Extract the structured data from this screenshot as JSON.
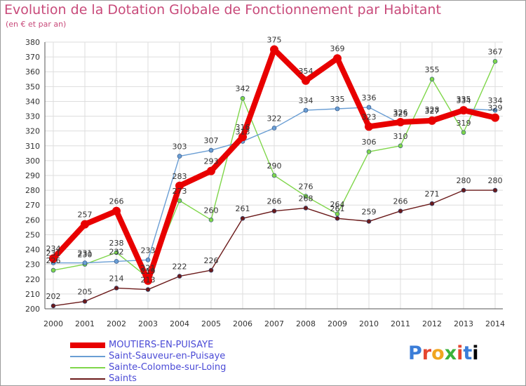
{
  "chart_data": {
    "type": "line",
    "title": "Evolution de la Dotation Globale de Fonctionnement par Habitant",
    "subtitle": "(en € et par an)",
    "x": [
      "2000",
      "2001",
      "2002",
      "2003",
      "2004",
      "2005",
      "2006",
      "2007",
      "2008",
      "2009",
      "2010",
      "2011",
      "2012",
      "2013",
      "2014"
    ],
    "ylim": [
      200,
      380
    ],
    "yticks": [
      200,
      210,
      220,
      230,
      240,
      250,
      260,
      270,
      280,
      290,
      300,
      310,
      320,
      330,
      340,
      350,
      360,
      370,
      380
    ],
    "grid": true,
    "legend_position": "bottom-left",
    "series": [
      {
        "name": "MOUTIERS-EN-PUISAYE",
        "color": "#e80000",
        "values": [
          234,
          257,
          266,
          219,
          283,
          293,
          316,
          375,
          354,
          369,
          323,
          326,
          327,
          334,
          329
        ]
      },
      {
        "name": "Saint-Sauveur-en-Puisaye",
        "color": "#6a9ed4",
        "values": [
          231,
          231,
          232,
          233,
          303,
          307,
          313,
          322,
          334,
          335,
          336,
          325,
          328,
          335,
          334
        ]
      },
      {
        "name": "Sainte-Colombe-sur-Loing",
        "color": "#7fd64a",
        "values": [
          226,
          230,
          238,
          221,
          273,
          260,
          342,
          290,
          276,
          264,
          306,
          310,
          355,
          319,
          367
        ]
      },
      {
        "name": "Saints",
        "color": "#6b1a1a",
        "values": [
          202,
          205,
          214,
          213,
          222,
          226,
          261,
          266,
          268,
          261,
          259,
          266,
          271,
          280,
          280
        ]
      }
    ]
  },
  "logo_text": [
    "P",
    "r",
    "o",
    "x",
    "i",
    "t",
    "i"
  ]
}
